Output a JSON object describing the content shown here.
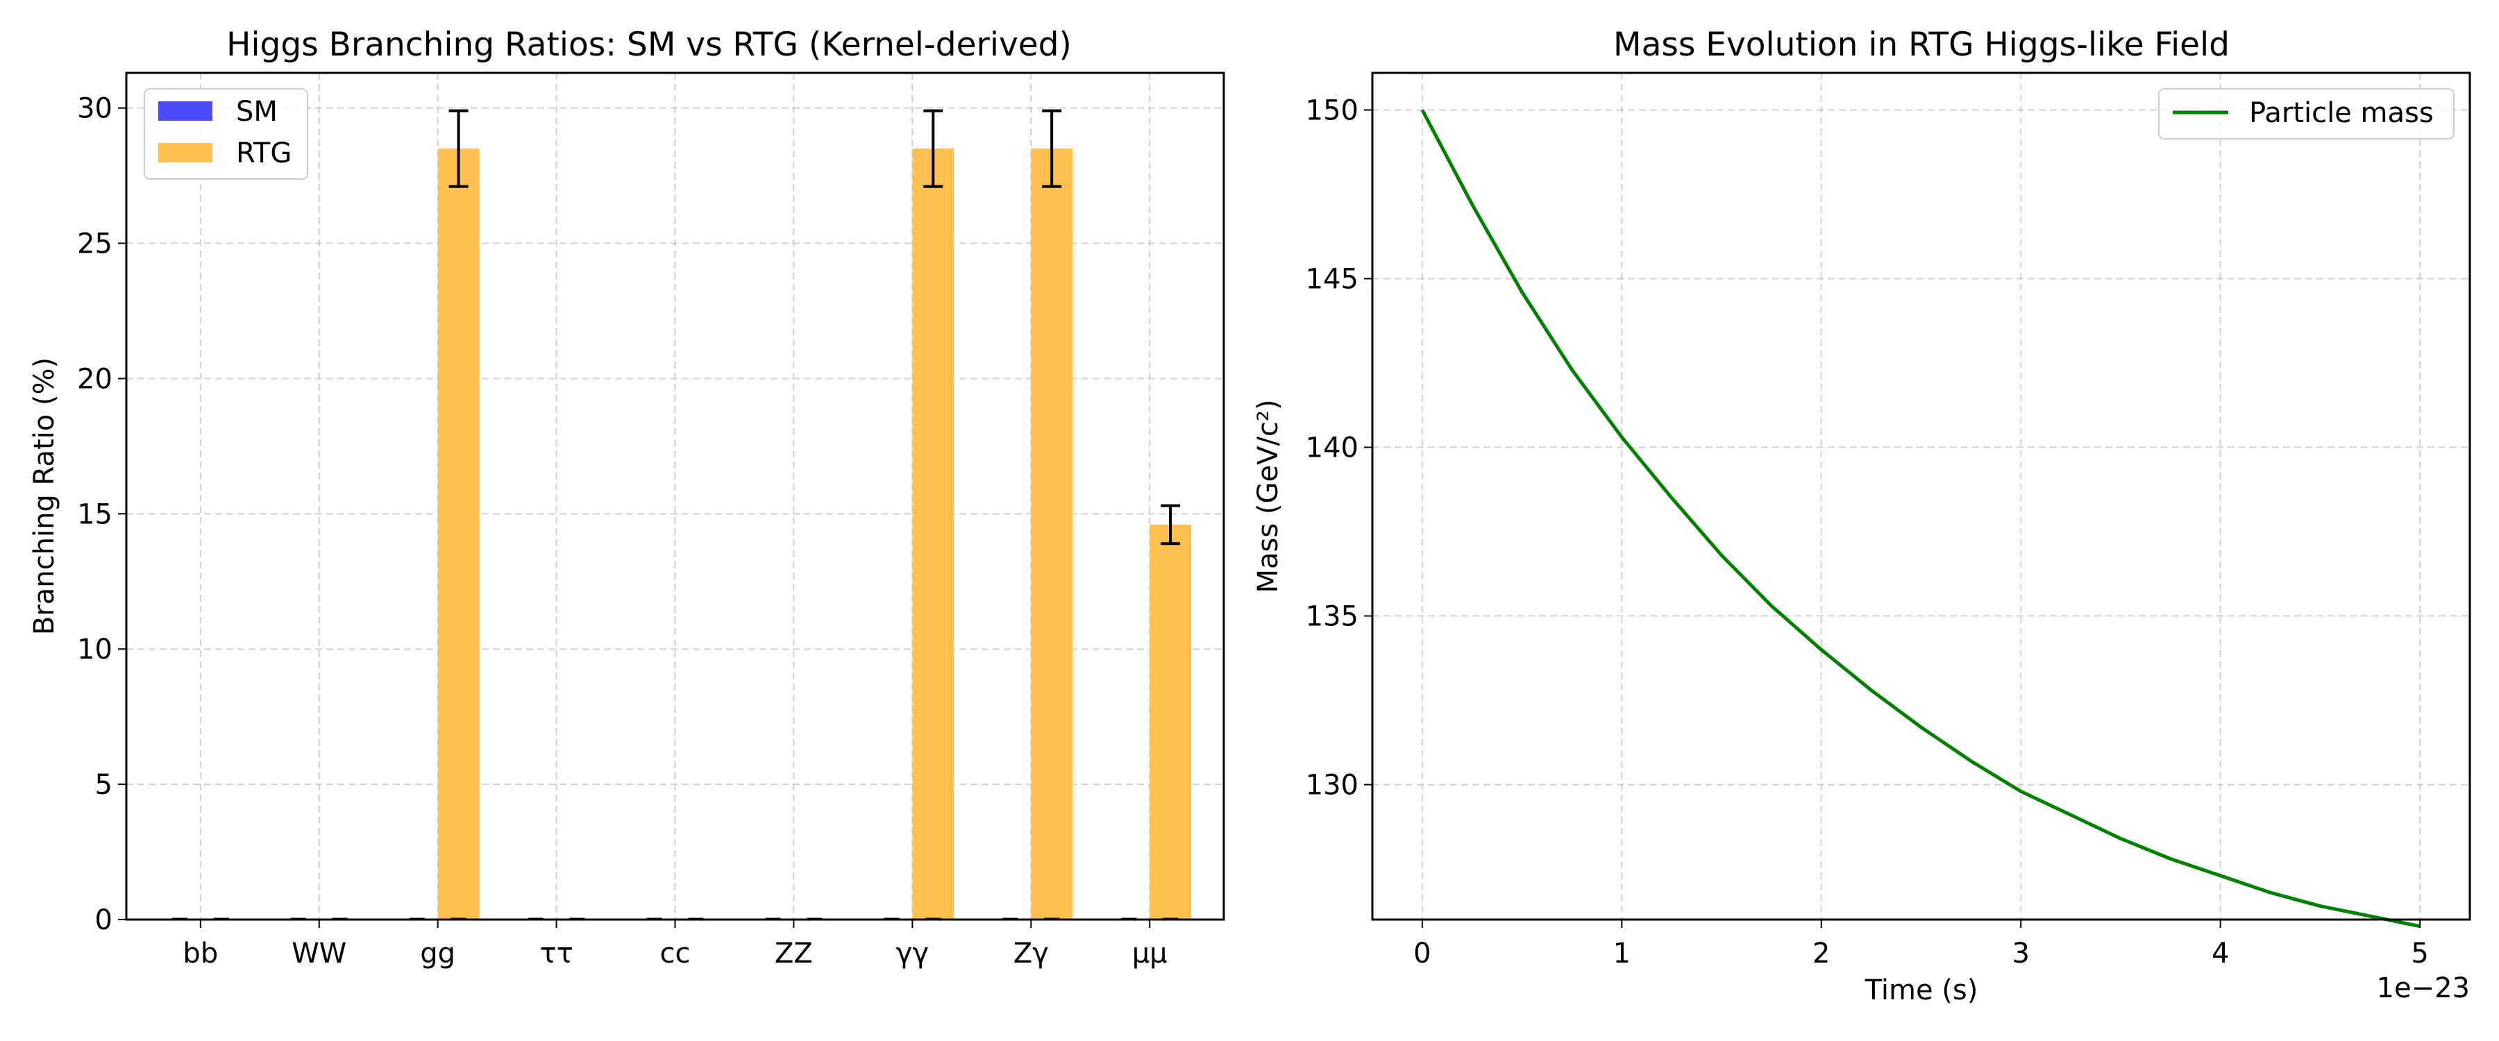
{
  "chart_data": [
    {
      "type": "bar",
      "title": "Higgs Branching Ratios: SM vs RTG (Kernel-derived)",
      "xlabel": "",
      "ylabel": "Branching Ratio (%)",
      "categories": [
        "bb",
        "WW",
        "gg",
        "ττ",
        "cc",
        "ZZ",
        "γγ",
        "Zγ",
        "μμ"
      ],
      "series": [
        {
          "name": "SM",
          "color": "#4b4bff",
          "values": [
            0,
            0,
            0,
            0,
            0,
            0,
            0,
            0,
            0
          ]
        },
        {
          "name": "RTG",
          "color": "#ffc04f",
          "values": [
            0,
            0,
            28.5,
            0,
            0,
            0,
            28.5,
            28.5,
            14.6
          ],
          "errors": [
            0,
            0,
            1.4,
            0,
            0,
            0,
            1.4,
            1.4,
            0.7
          ]
        }
      ],
      "ylim": [
        0,
        31.3
      ],
      "yticks": [
        0,
        5,
        10,
        15,
        20,
        25,
        30
      ],
      "grid": true,
      "legend_position": "top-left"
    },
    {
      "type": "line",
      "title": "Mass Evolution in RTG Higgs-like Field",
      "xlabel": "Time (s)",
      "ylabel": "Mass (GeV/c²)",
      "x_offset_label": "1e−23",
      "xlim": [
        -0.25,
        5.25
      ],
      "ylim": [
        126.0,
        151.1
      ],
      "xticks": [
        0,
        1,
        2,
        3,
        4,
        5
      ],
      "yticks": [
        130,
        135,
        140,
        145,
        150
      ],
      "series": [
        {
          "name": "Particle mass",
          "color": "#008000",
          "x": [
            0,
            0.25,
            0.5,
            0.75,
            1,
            1.25,
            1.5,
            1.75,
            2,
            2.25,
            2.5,
            2.75,
            3,
            3.25,
            3.5,
            3.75,
            4,
            4.25,
            4.5,
            4.75,
            5
          ],
          "y": [
            150.0,
            147.2,
            144.6,
            142.3,
            140.3,
            138.5,
            136.8,
            135.3,
            134.0,
            132.8,
            131.7,
            130.7,
            129.8,
            129.1,
            128.4,
            127.8,
            127.3,
            126.8,
            126.4,
            126.1,
            125.8
          ]
        }
      ],
      "grid": true,
      "legend_position": "top-right"
    }
  ]
}
